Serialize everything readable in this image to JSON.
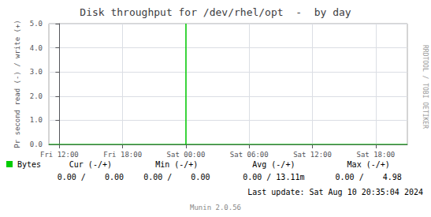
{
  "chart_data": {
    "type": "line",
    "title": "Disk throughput for /dev/rhel/opt  -  by day",
    "y_label": "Pr second read (-) / write (+)",
    "series": [
      {
        "name": "Bytes",
        "color": "#00cc00",
        "x": [
          -3600,
          43200,
          43200,
          43200,
          118800
        ],
        "values": [
          0.0,
          0.0,
          5.0,
          0.0,
          0.0
        ]
      }
    ],
    "xlim": [
      -3600,
      118800
    ],
    "xticks": [
      {
        "value": 0,
        "label": "Fri 12:00"
      },
      {
        "value": 21600,
        "label": "Fri 18:00"
      },
      {
        "value": 43200,
        "label": "Sat 00:00"
      },
      {
        "value": 64800,
        "label": "Sat 06:00"
      },
      {
        "value": 86400,
        "label": "Sat 12:00"
      },
      {
        "value": 108000,
        "label": "Sat 18:00"
      }
    ],
    "ylim": [
      0.0,
      5.0
    ],
    "yticks": [
      {
        "value": 0.0,
        "label": "0.0"
      },
      {
        "value": 1.0,
        "label": "1.0"
      },
      {
        "value": 2.0,
        "label": "2.0"
      },
      {
        "value": 3.0,
        "label": "3.0"
      },
      {
        "value": 4.0,
        "label": "4.0"
      },
      {
        "value": 5.0,
        "label": "5.0"
      }
    ],
    "grid": true,
    "annotations": [
      "Cur (-/+)",
      "Min (-/+)",
      "Avg (-/+)",
      "Max (-/+)",
      "0.00 /    0.00",
      "0.00 /    0.00",
      "0.00 / 13.11m",
      "0.00 /    4.98",
      "Last update: Sat Aug 10 20:35:04 2024",
      "RRDTOOL / TOBI OETIKER",
      "Munin 2.0.56"
    ]
  }
}
